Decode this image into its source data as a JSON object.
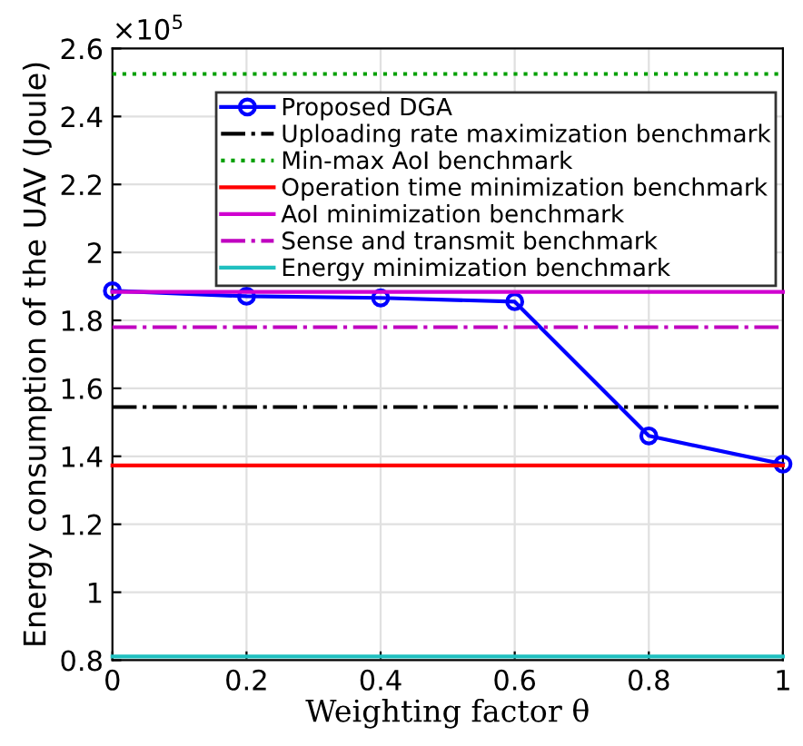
{
  "chart_data": {
    "type": "line",
    "xlabel": "Weighting factor θ",
    "ylabel": "Energy consumption of the UAV (Joule)",
    "annotations": [
      "×10$^{5}$"
    ],
    "xlim": [
      0,
      1
    ],
    "xticks": [
      0,
      0.2,
      0.4,
      0.6,
      0.8,
      1
    ],
    "ylim": [
      0.8,
      2.6
    ],
    "yticks": [
      0.8,
      1,
      1.2,
      1.4,
      1.6,
      1.8,
      2,
      2.2,
      2.4,
      2.6
    ],
    "grid": true,
    "legend": "top right",
    "series": [
      {
        "name": "Proposed DGA",
        "color": "#0000ff",
        "marker": "circle",
        "line_style": "solid",
        "x": [
          0,
          0.2,
          0.4,
          0.6,
          0.8,
          1
        ],
        "values": [
          1.887,
          1.871,
          1.866,
          1.855,
          1.46,
          1.377
        ]
      },
      {
        "name": "Uploading rate maximization benchmark",
        "color": "#000000",
        "line_style": "dashdot",
        "x": [
          0,
          1
        ],
        "values": [
          1.545,
          1.545
        ]
      },
      {
        "name": "Min-max AoI benchmark",
        "color": "#00a000",
        "line_style": "dotted",
        "x": [
          0,
          1
        ],
        "values": [
          2.525,
          2.525
        ]
      },
      {
        "name": "Operation time minimization benchmark",
        "color": "#ff0000",
        "line_style": "solid",
        "x": [
          0,
          1
        ],
        "values": [
          1.373,
          1.373
        ]
      },
      {
        "name": "AoI minimization benchmark",
        "color": "#d000d0",
        "line_style": "solid",
        "x": [
          0,
          1
        ],
        "values": [
          1.884,
          1.884
        ]
      },
      {
        "name": "Sense and transmit benchmark",
        "color": "#c000c0",
        "line_style": "dashdot",
        "x": [
          0,
          1
        ],
        "values": [
          1.78,
          1.78
        ]
      },
      {
        "name": "Energy minimization benchmark",
        "color": "#20c0c0",
        "line_style": "solid",
        "x": [
          0,
          1
        ],
        "values": [
          0.811,
          0.811
        ]
      }
    ]
  }
}
